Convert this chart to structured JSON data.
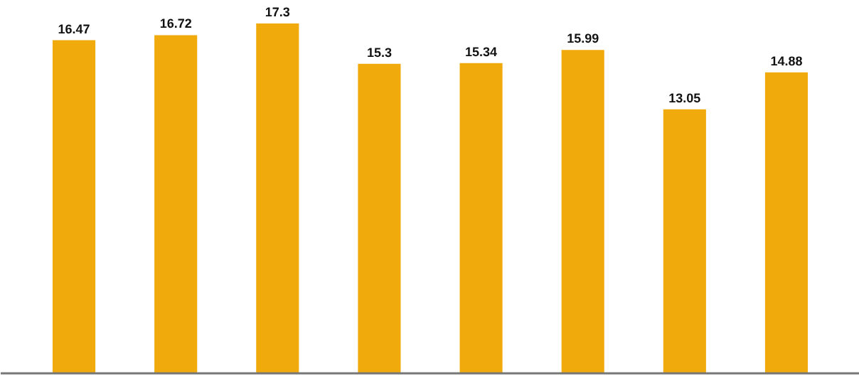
{
  "chart_data": {
    "type": "bar",
    "categories": [
      null,
      null,
      null,
      null,
      null,
      null,
      null,
      null
    ],
    "values": [
      16.47,
      16.72,
      17.3,
      15.3,
      15.34,
      15.99,
      13.05,
      14.88
    ],
    "color": "#f0aa0c",
    "data_labels": true,
    "tick_labels": false,
    "grid": false
  }
}
